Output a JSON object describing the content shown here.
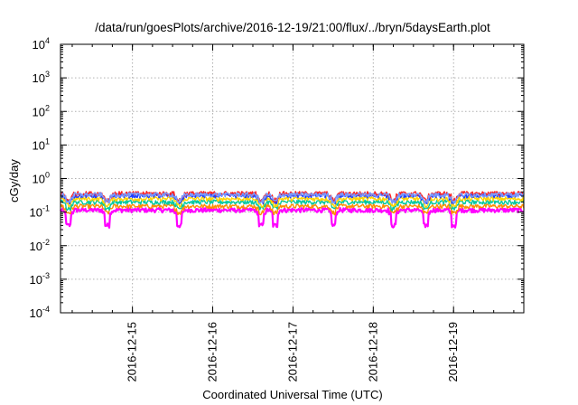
{
  "chart_data": {
    "type": "line",
    "title": "/data/run/goesPlots/archive/2016-12-19/21:00/flux/../bryn/5daysEarth.plot",
    "xlabel": "Coordinated Universal Time (UTC)",
    "ylabel": "cGy/day",
    "yscale": "log",
    "ylim_exponents": [
      -4,
      4
    ],
    "y_tick_base": "10",
    "y_tick_exponents": [
      "-4",
      "-3",
      "-2",
      "-1",
      "0",
      "1",
      "2",
      "3",
      "4"
    ],
    "xlim": [
      "2016-12-14T02:30",
      "2016-12-19T21:00"
    ],
    "x_ticks": [
      "2016-12-15",
      "2016-12-16",
      "2016-12-17",
      "2016-12-18",
      "2016-12-19"
    ],
    "grid": true,
    "legend": "none",
    "series_colors": [
      "#ff00ff",
      "#ff8c00",
      "#00c8a0",
      "#ffd400",
      "#1f3fff",
      "#ff2222",
      "#7799ff"
    ],
    "series_base_values": [
      0.115,
      0.15,
      0.2,
      0.25,
      0.31,
      0.36,
      0.33
    ],
    "dip_days": [
      0.1,
      0.58,
      1.48,
      2.5,
      2.67,
      3.4,
      4.15,
      4.55,
      4.9
    ]
  }
}
